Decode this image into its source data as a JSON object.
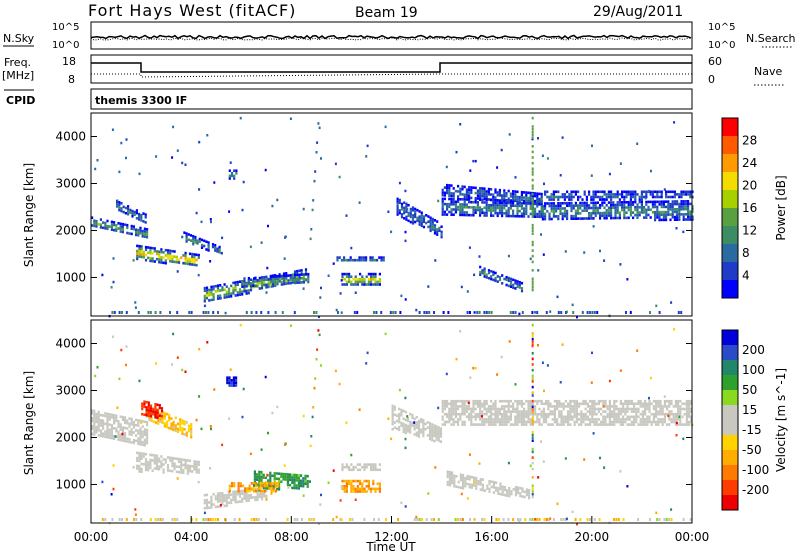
{
  "header": {
    "station": "Fort Hays West (fitACF)",
    "beam": "Beam 19",
    "date": "29/Aug/2011"
  },
  "status_panels": {
    "nsky_label": "N.Sky",
    "nsearch_label": "N.Search",
    "noise_ticks": [
      "10^5",
      "10^0"
    ],
    "noise_ticks_right": [
      "10^5",
      "10^0"
    ],
    "freq_label": "Freq.",
    "freq_unit": "[MHz]",
    "freq_ticks": [
      "18",
      "8"
    ],
    "nave_label": "Nave",
    "nave_ticks": [
      "60",
      "0"
    ],
    "cpid_label": "CPID",
    "cpid_text": "themis 3300 IF"
  },
  "chart_data": [
    {
      "type": "heatmap",
      "panel": "power",
      "ylabel": "Slant Range [km]",
      "ylim": [
        180,
        4500
      ],
      "yticks": [
        "1000",
        "2000",
        "3000",
        "4000"
      ],
      "colorbar_label": "Power [dB]",
      "colorbar_ticks": [
        "28",
        "24",
        "20",
        "16",
        "12",
        "8",
        "4"
      ],
      "colorbar_colors": [
        "#ff0000",
        "#ff5a00",
        "#ff9b00",
        "#f5dc00",
        "#a6d000",
        "#5aa040",
        "#3c8c64",
        "#2a6aa0",
        "#1e3cc8",
        "#0000ff"
      ]
    },
    {
      "type": "heatmap",
      "panel": "velocity",
      "ylabel": "Slant Range [km]",
      "ylim": [
        180,
        4500
      ],
      "yticks": [
        "1000",
        "2000",
        "3000",
        "4000"
      ],
      "xticks": [
        "00:00",
        "04:00",
        "08:00",
        "12:00",
        "16:00",
        "20:00",
        "00:00"
      ],
      "xlabel": "Time UT",
      "colorbar_label": "Velocity [m s^-1]",
      "colorbar_ticks": [
        "200",
        "100",
        "50",
        "15",
        "-15",
        "-50",
        "-100",
        "-200"
      ],
      "colorbar_colors": [
        "#0000dd",
        "#2a4cc8",
        "#22866a",
        "#2ea02e",
        "#8ad820",
        "#c8c8c0",
        "#c8c8c0",
        "#ffd200",
        "#ffae00",
        "#ff7a00",
        "#ff3c00",
        "#ee0000"
      ]
    }
  ],
  "bands": {
    "power": [
      {
        "t0": 0.0,
        "t1": 2.2,
        "r0": 2100,
        "r1": 2300,
        "r_end0": 1850,
        "r_end1": 2050,
        "level": 0.45
      },
      {
        "t0": 1.0,
        "t1": 2.2,
        "r0": 2450,
        "r1": 2650,
        "r_end0": 2150,
        "r_end1": 2350,
        "level": 0.3
      },
      {
        "t0": 1.8,
        "t1": 4.3,
        "r0": 1400,
        "r1": 1700,
        "r_end0": 1250,
        "r_end1": 1500,
        "level": 0.8
      },
      {
        "t0": 3.6,
        "t1": 5.2,
        "r0": 1800,
        "r1": 2000,
        "r_end0": 1500,
        "r_end1": 1650,
        "level": 0.35
      },
      {
        "t0": 4.5,
        "t1": 8.6,
        "r0": 500,
        "r1": 800,
        "r_end0": 950,
        "r_end1": 1200,
        "level": 0.6
      },
      {
        "t0": 6.0,
        "t1": 8.7,
        "r0": 800,
        "r1": 1000,
        "r_end0": 900,
        "r_end1": 1100,
        "level": 0.4
      },
      {
        "t0": 10.0,
        "t1": 11.5,
        "r0": 850,
        "r1": 1100,
        "r_end0": 850,
        "r_end1": 1100,
        "level": 0.7
      },
      {
        "t0": 9.8,
        "t1": 11.7,
        "r0": 1350,
        "r1": 1450,
        "r_end0": 1350,
        "r_end1": 1450,
        "level": 0.2
      },
      {
        "t0": 12.2,
        "t1": 14.0,
        "r0": 2350,
        "r1": 2700,
        "r_end0": 1850,
        "r_end1": 2150,
        "level": 0.25
      },
      {
        "t0": 14.0,
        "t1": 18.0,
        "r0": 2350,
        "r1": 2700,
        "r_end0": 2300,
        "r_end1": 2650,
        "level": 0.3
      },
      {
        "t0": 14.0,
        "t1": 18.0,
        "r0": 2750,
        "r1": 3000,
        "r_end0": 2550,
        "r_end1": 2800,
        "level": 0.2
      },
      {
        "t0": 18.0,
        "t1": 24.0,
        "r0": 2250,
        "r1": 2600,
        "r_end0": 2250,
        "r_end1": 2650,
        "level": 0.35
      },
      {
        "t0": 18.0,
        "t1": 24.0,
        "r0": 2650,
        "r1": 2850,
        "r_end0": 2700,
        "r_end1": 2850,
        "level": 0.2
      },
      {
        "t0": 15.5,
        "t1": 17.2,
        "r0": 1050,
        "r1": 1250,
        "r_end0": 700,
        "r_end1": 900,
        "level": 0.35
      },
      {
        "t0": 5.5,
        "t1": 5.8,
        "r0": 3100,
        "r1": 3300,
        "r_end0": 3100,
        "r_end1": 3300,
        "level": 0.4
      }
    ],
    "velocity": [
      {
        "t0": 0.0,
        "t1": 2.2,
        "r0": 2100,
        "r1": 2600,
        "r_end0": 1850,
        "r_end1": 2350,
        "vel": 0
      },
      {
        "t0": 1.8,
        "t1": 4.3,
        "r0": 1300,
        "r1": 1700,
        "r_end0": 1250,
        "r_end1": 1500,
        "vel": 0
      },
      {
        "t0": 2.2,
        "t1": 4.0,
        "r0": 2400,
        "r1": 2700,
        "r_end0": 2000,
        "r_end1": 2300,
        "vel": -0.3
      },
      {
        "t0": 2.0,
        "t1": 2.8,
        "r0": 2500,
        "r1": 2800,
        "r_end0": 2400,
        "r_end1": 2700,
        "vel": -0.9
      },
      {
        "t0": 4.5,
        "t1": 7.0,
        "r0": 500,
        "r1": 800,
        "r_end0": 700,
        "r_end1": 950,
        "vel": 0
      },
      {
        "t0": 6.5,
        "t1": 8.7,
        "r0": 900,
        "r1": 1300,
        "r_end0": 950,
        "r_end1": 1200,
        "vel": 0.5
      },
      {
        "t0": 5.5,
        "t1": 7.5,
        "r0": 850,
        "r1": 1050,
        "r_end0": 850,
        "r_end1": 1050,
        "vel": -0.5
      },
      {
        "t0": 10.0,
        "t1": 11.5,
        "r0": 850,
        "r1": 1100,
        "r_end0": 850,
        "r_end1": 1100,
        "vel": -0.5
      },
      {
        "t0": 10.0,
        "t1": 11.5,
        "r0": 1300,
        "r1": 1450,
        "r_end0": 1300,
        "r_end1": 1450,
        "vel": 0
      },
      {
        "t0": 12.0,
        "t1": 14.0,
        "r0": 2200,
        "r1": 2700,
        "r_end0": 1900,
        "r_end1": 2200,
        "vel": 0
      },
      {
        "t0": 14.0,
        "t1": 24.0,
        "r0": 2250,
        "r1": 2800,
        "r_end0": 2250,
        "r_end1": 2800,
        "vel": 0
      },
      {
        "t0": 14.2,
        "t1": 17.5,
        "r0": 1000,
        "r1": 1300,
        "r_end0": 700,
        "r_end1": 900,
        "vel": 0
      },
      {
        "t0": 5.4,
        "t1": 5.8,
        "r0": 3100,
        "r1": 3300,
        "r_end0": 3100,
        "r_end1": 3300,
        "vel": 1.0
      }
    ]
  }
}
